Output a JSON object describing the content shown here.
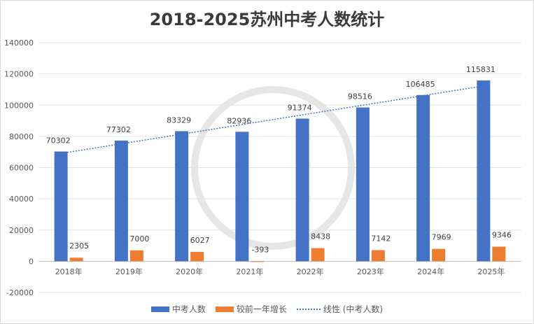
{
  "chart_data": {
    "type": "bar",
    "title": "2018-2025苏州中考人数统计",
    "categories": [
      "2018年",
      "2019年",
      "2020年",
      "2021年",
      "2022年",
      "2023年",
      "2024年",
      "2025年"
    ],
    "series": [
      {
        "name": "中考人数",
        "color": "#4472c4",
        "values": [
          70302,
          77302,
          83329,
          82936,
          91374,
          98516,
          106485,
          115831
        ]
      },
      {
        "name": "较前一年增长",
        "color": "#ed7d31",
        "values": [
          2305,
          7000,
          6027,
          -393,
          8438,
          7142,
          7969,
          9346
        ]
      }
    ],
    "trendline": {
      "name": "线性 (中考人数)",
      "type": "linear",
      "series": "中考人数",
      "color": "#4472c4",
      "style": "dotted"
    },
    "ylim": [
      -20000,
      140000
    ],
    "yticks": [
      -20000,
      0,
      20000,
      40000,
      60000,
      80000,
      100000,
      120000,
      140000
    ],
    "grid": true,
    "legend": "bottom"
  }
}
